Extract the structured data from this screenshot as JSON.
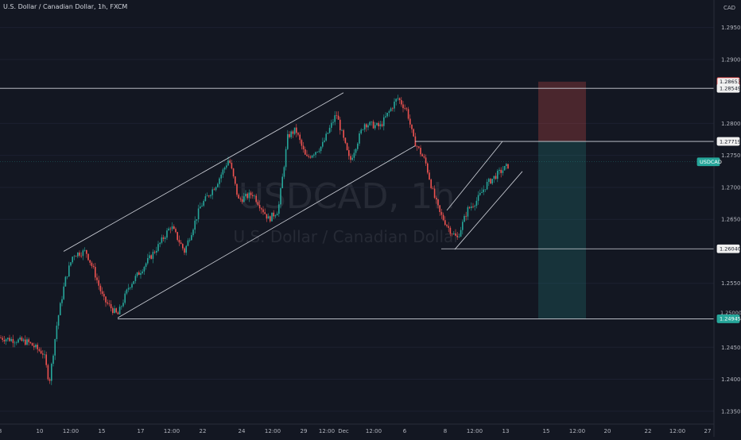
{
  "chart_data": {
    "type": "candlestick",
    "title": "U.S. Dollar / Canadian Dollar, 1h, FXCM",
    "symbol": "USDCAD",
    "watermark_ticker": "USDCAD, 1h",
    "watermark_name": "U.S. Dollar / Canadian Dollar",
    "currency": "CAD",
    "ylim": [
      1.231,
      1.2993
    ],
    "y_ticks": [
      {
        "value": 1.295,
        "label": "1.29500"
      },
      {
        "value": 1.29,
        "label": "1.29000"
      },
      {
        "value": 1.28,
        "label": "1.28000"
      },
      {
        "value": 1.275,
        "label": "1.27500"
      },
      {
        "value": 1.27,
        "label": "1.27000"
      },
      {
        "value": 1.265,
        "label": "1.26500"
      },
      {
        "value": 1.255,
        "label": "1.25500"
      },
      {
        "value": 1.245,
        "label": "1.24500"
      },
      {
        "value": 1.24,
        "label": "1.24000"
      },
      {
        "value": 1.235,
        "label": "1.23500"
      }
    ],
    "x_ticks": [
      {
        "pos": 0,
        "label": "8"
      },
      {
        "pos": 50,
        "label": "10"
      },
      {
        "pos": 89,
        "label": "12:00"
      },
      {
        "pos": 128,
        "label": "15"
      },
      {
        "pos": 177,
        "label": "17"
      },
      {
        "pos": 216,
        "label": "12:00"
      },
      {
        "pos": 255,
        "label": "22"
      },
      {
        "pos": 304,
        "label": "24"
      },
      {
        "pos": 343,
        "label": "12:00"
      },
      {
        "pos": 382,
        "label": "29"
      },
      {
        "pos": 411,
        "label": "12:00"
      },
      {
        "pos": 432,
        "label": "Dec"
      },
      {
        "pos": 470,
        "label": "12:00"
      },
      {
        "pos": 509,
        "label": "6"
      },
      {
        "pos": 560,
        "label": "8"
      },
      {
        "pos": 597,
        "label": "12:00"
      },
      {
        "pos": 636,
        "label": "13"
      },
      {
        "pos": 687,
        "label": "15"
      },
      {
        "pos": 726,
        "label": "12:00"
      },
      {
        "pos": 764,
        "label": "20"
      },
      {
        "pos": 815,
        "label": "22"
      },
      {
        "pos": 852,
        "label": "12:00"
      },
      {
        "pos": 890,
        "label": "27"
      }
    ],
    "price_path": [
      [
        0,
        1.2465
      ],
      [
        35,
        1.2458
      ],
      [
        55,
        1.244
      ],
      [
        62,
        1.2395
      ],
      [
        72,
        1.249
      ],
      [
        82,
        1.2555
      ],
      [
        92,
        1.2595
      ],
      [
        108,
        1.26
      ],
      [
        118,
        1.257
      ],
      [
        130,
        1.2525
      ],
      [
        148,
        1.25
      ],
      [
        162,
        1.2545
      ],
      [
        180,
        1.2575
      ],
      [
        200,
        1.261
      ],
      [
        215,
        1.264
      ],
      [
        232,
        1.26
      ],
      [
        252,
        1.267
      ],
      [
        272,
        1.2705
      ],
      [
        288,
        1.2745
      ],
      [
        300,
        1.268
      ],
      [
        318,
        1.269
      ],
      [
        338,
        1.265
      ],
      [
        350,
        1.2665
      ],
      [
        362,
        1.278
      ],
      [
        372,
        1.279
      ],
      [
        385,
        1.2745
      ],
      [
        405,
        1.2765
      ],
      [
        423,
        1.2815
      ],
      [
        440,
        1.274
      ],
      [
        458,
        1.28
      ],
      [
        478,
        1.2795
      ],
      [
        500,
        1.284
      ],
      [
        512,
        1.282
      ],
      [
        520,
        1.2775
      ],
      [
        535,
        1.274
      ],
      [
        545,
        1.269
      ],
      [
        553,
        1.266
      ],
      [
        565,
        1.2635
      ],
      [
        575,
        1.262
      ],
      [
        588,
        1.2665
      ],
      [
        600,
        1.268
      ],
      [
        612,
        1.2705
      ],
      [
        625,
        1.272
      ],
      [
        640,
        1.2735
      ]
    ],
    "horizontal_levels": [
      {
        "value": 1.28549,
        "label": "1.28549",
        "x_start": 0
      },
      {
        "value": 1.27719,
        "label": "1.27719",
        "x_start": 522
      },
      {
        "value": 1.2604,
        "label": "1.26040",
        "x_start": 555
      },
      {
        "value": 1.24945,
        "label": "1.24945",
        "x_start": 148
      }
    ],
    "trend_channels": [
      {
        "upper": [
          [
            80,
            1.26
          ],
          [
            432,
            1.2848
          ]
        ],
        "lower": [
          [
            148,
            1.2496
          ],
          [
            522,
            1.2765
          ]
        ]
      },
      {
        "upper": [
          [
            562,
            1.2664
          ],
          [
            632,
            1.2772
          ]
        ],
        "lower": [
          [
            572,
            1.2603
          ],
          [
            657,
            1.2725
          ]
        ]
      }
    ],
    "position": {
      "type": "short",
      "entry": 1.27719,
      "stop": 1.28653,
      "target": 1.24945,
      "x_start": 677,
      "x_end": 737
    },
    "price_tags": [
      {
        "value": 1.28653,
        "label": "1.28653",
        "style": "stop"
      },
      {
        "value": 1.28549,
        "label": "1.28549",
        "style": "level"
      },
      {
        "value": 1.27719,
        "label": "1.27719",
        "style": "entry"
      },
      {
        "value": 1.274,
        "label": "USDCAD",
        "style": "current"
      },
      {
        "value": 1.2604,
        "label": "1.26040",
        "style": "level"
      },
      {
        "value": 1.24945,
        "label": "1.24945",
        "style": "target"
      },
      {
        "value": 1.25,
        "label": "1.25000",
        "style": "tick-under"
      }
    ],
    "colors": {
      "background": "#131722",
      "up": "#26a69a",
      "down": "#ef5350",
      "line": "#d1d4dc",
      "axis_text": "#b2b5be",
      "stop_zone": "#ef5350",
      "target_zone": "#26a69a",
      "current_tag": "#26a69a"
    }
  }
}
